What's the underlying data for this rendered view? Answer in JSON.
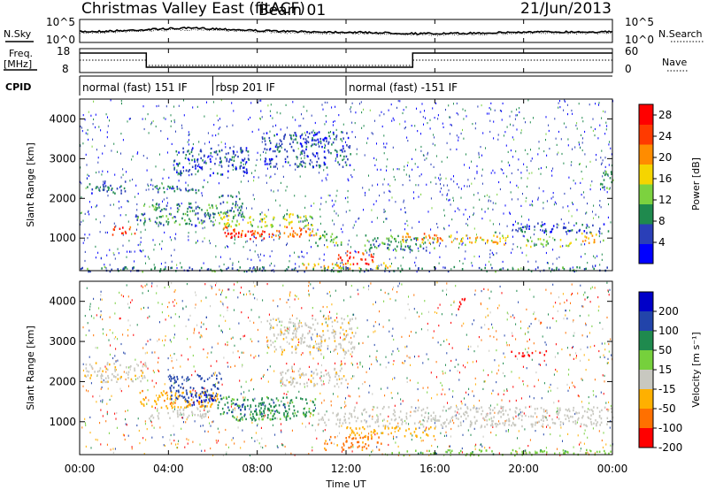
{
  "header": {
    "title": "Christmas Valley East (fitACF)",
    "beam": "Beam 01",
    "date": "21/Jun/2013"
  },
  "top_panel": {
    "left_label": "N.Sky",
    "right_label": "N.Search",
    "left_ticks": [
      "10^5",
      "10^0"
    ],
    "right_ticks": [
      "10^5",
      "10^0"
    ]
  },
  "freq_panel": {
    "left_label_1": "Freq.",
    "left_label_2": "[MHz]",
    "right_label": "Nave",
    "left_ticks": [
      "18",
      "8"
    ],
    "right_ticks": [
      "60",
      "0"
    ]
  },
  "cpid": {
    "label": "CPID",
    "segments": [
      {
        "start_hour": 0,
        "end_hour": 6,
        "label": "normal (fast) 151 IF"
      },
      {
        "start_hour": 6,
        "end_hour": 12,
        "label": "rbsp 201 IF"
      },
      {
        "start_hour": 12,
        "end_hour": 24,
        "label": "normal (fast) -151 IF"
      }
    ]
  },
  "x_axis": {
    "label": "Time UT",
    "ticks": [
      "00:00",
      "04:00",
      "08:00",
      "12:00",
      "16:00",
      "20:00",
      "00:00"
    ]
  },
  "chart_data": [
    {
      "type": "heatmap",
      "parameter": "power",
      "ylabel": "Slant Range [km]",
      "xlabel": "Time UT",
      "xlim_hours": [
        0,
        24
      ],
      "ylim": [
        180,
        4500
      ],
      "y_ticks": [
        1000,
        2000,
        3000,
        4000
      ],
      "colorbar": {
        "label": "Power [dB]",
        "ticks": [
          4,
          8,
          12,
          16,
          20,
          24,
          28
        ],
        "range": [
          0,
          30
        ],
        "colors": [
          "#0000ff",
          "#2a3fb8",
          "#1f8a4e",
          "#7cd23f",
          "#f5d500",
          "#ff8c00",
          "#ff3a00",
          "#ff0000"
        ]
      },
      "scatter_bands": [
        {
          "t0": 0.2,
          "t1": 2.2,
          "r0": 2150,
          "r1": 2450,
          "v": 7
        },
        {
          "t0": 1.4,
          "t1": 2.6,
          "r0": 1100,
          "r1": 1300,
          "v": 24
        },
        {
          "t0": 2.4,
          "t1": 6.2,
          "r0": 1350,
          "r1": 1900,
          "v": 9
        },
        {
          "t0": 3.2,
          "t1": 5.6,
          "r0": 2150,
          "r1": 2350,
          "v": 7
        },
        {
          "t0": 6.2,
          "t1": 7.4,
          "r0": 1500,
          "r1": 2100,
          "v": 9
        },
        {
          "t0": 6.2,
          "t1": 10.6,
          "r0": 1300,
          "r1": 1650,
          "v": 14
        },
        {
          "t0": 6.3,
          "t1": 10.8,
          "r0": 1050,
          "r1": 1300,
          "v": 22
        },
        {
          "t0": 6.4,
          "t1": 8.4,
          "r0": 1000,
          "r1": 1200,
          "v": 28
        },
        {
          "t0": 10.6,
          "t1": 11.8,
          "r0": 800,
          "r1": 1200,
          "v": 12
        },
        {
          "t0": 11.6,
          "t1": 13.2,
          "r0": 350,
          "r1": 700,
          "v": 26
        },
        {
          "t0": 12.8,
          "t1": 16.0,
          "r0": 700,
          "r1": 1100,
          "v": 10
        },
        {
          "t0": 14.4,
          "t1": 16.4,
          "r0": 900,
          "r1": 1150,
          "v": 20
        },
        {
          "t0": 16.6,
          "t1": 19.4,
          "r0": 850,
          "r1": 1100,
          "v": 18
        },
        {
          "t0": 19.4,
          "t1": 23.8,
          "r0": 1150,
          "r1": 1400,
          "v": 6
        },
        {
          "t0": 20.0,
          "t1": 22.4,
          "r0": 800,
          "r1": 1000,
          "v": 14
        },
        {
          "t0": 22.6,
          "t1": 23.6,
          "r0": 900,
          "r1": 1150,
          "v": 18
        },
        {
          "t0": 8.2,
          "t1": 12.2,
          "r0": 2800,
          "r1": 3700,
          "v": 6
        },
        {
          "t0": 4.2,
          "t1": 7.6,
          "r0": 2600,
          "r1": 3300,
          "v": 6
        },
        {
          "t0": 10.0,
          "t1": 14.0,
          "r0": 250,
          "r1": 400,
          "v": 18
        },
        {
          "t0": 0.0,
          "t1": 24.0,
          "r0": 180,
          "r1": 300,
          "v": 8
        },
        {
          "t0": 23.4,
          "t1": 24.0,
          "r0": 2200,
          "r1": 2700,
          "v": 10
        }
      ]
    },
    {
      "type": "heatmap",
      "parameter": "velocity",
      "ylabel": "Slant Range [km]",
      "xlabel": "Time UT",
      "xlim_hours": [
        0,
        24
      ],
      "ylim": [
        180,
        4500
      ],
      "y_ticks": [
        1000,
        2000,
        3000,
        4000
      ],
      "colorbar": {
        "label": "Velocity [m s⁻¹]",
        "ticks": [
          200,
          100,
          50,
          15,
          -15,
          -50,
          -100,
          -200
        ],
        "colors": [
          "#0000c8",
          "#2244aa",
          "#1f8a4e",
          "#76d03c",
          "#c8c8c0",
          "#ffb000",
          "#ff7000",
          "#ff0000"
        ]
      },
      "scatter_bands": [
        {
          "t0": 0.2,
          "t1": 3.0,
          "r0": 2000,
          "r1": 2500,
          "v": -10
        },
        {
          "t0": 2.6,
          "t1": 6.2,
          "r0": 1350,
          "r1": 1800,
          "v": -40
        },
        {
          "t0": 4.0,
          "t1": 6.4,
          "r0": 1500,
          "r1": 2200,
          "v": 150
        },
        {
          "t0": 5.0,
          "t1": 6.0,
          "r0": 1400,
          "r1": 1700,
          "v": 220
        },
        {
          "t0": 6.2,
          "t1": 10.6,
          "r0": 1050,
          "r1": 1650,
          "v": 60
        },
        {
          "t0": 6.6,
          "t1": 9.4,
          "r0": 1200,
          "r1": 1500,
          "v": 100
        },
        {
          "t0": 3.0,
          "t1": 6.0,
          "r0": 1100,
          "r1": 1350,
          "v": 0
        },
        {
          "t0": 10.6,
          "t1": 12.2,
          "r0": 900,
          "r1": 1250,
          "v": 0
        },
        {
          "t0": 12.0,
          "t1": 24.0,
          "r0": 900,
          "r1": 1400,
          "v": 0
        },
        {
          "t0": 11.0,
          "t1": 13.6,
          "r0": 300,
          "r1": 650,
          "v": -60
        },
        {
          "t0": 12.0,
          "t1": 16.0,
          "r0": 650,
          "r1": 900,
          "v": -30
        },
        {
          "t0": 14.0,
          "t1": 24.0,
          "r0": 180,
          "r1": 320,
          "v": 40
        },
        {
          "t0": 8.4,
          "t1": 12.4,
          "r0": 2700,
          "r1": 3600,
          "v": -5
        },
        {
          "t0": 19.4,
          "t1": 21.0,
          "r0": 2650,
          "r1": 2800,
          "v": -160
        },
        {
          "t0": 17.0,
          "t1": 17.4,
          "r0": 3800,
          "r1": 4100,
          "v": -210
        },
        {
          "t0": 9.0,
          "t1": 12.0,
          "r0": 1900,
          "r1": 2400,
          "v": -5
        }
      ]
    }
  ]
}
